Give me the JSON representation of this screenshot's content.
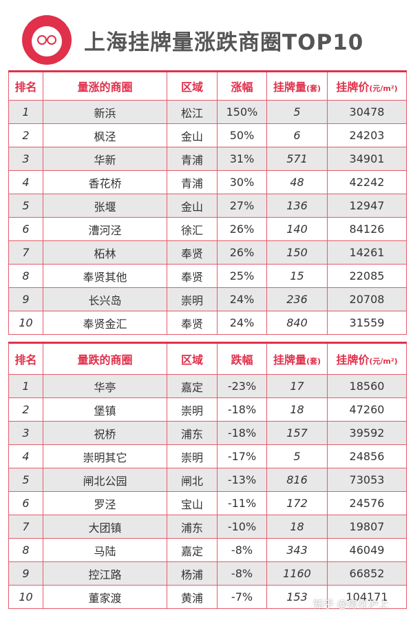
{
  "header": {
    "title": "上海挂牌量涨跌商圈TOP10"
  },
  "tables": [
    {
      "headers": [
        "排名",
        "量涨的商圈",
        "区域",
        "涨幅",
        {
          "text": "挂牌量",
          "unit": "(套)"
        },
        {
          "text": "挂牌价",
          "unit": "(元/m²)"
        }
      ],
      "rows": [
        [
          1,
          "新浜",
          "松江",
          "150%",
          5,
          30478
        ],
        [
          2,
          "枫泾",
          "金山",
          "50%",
          6,
          24203
        ],
        [
          3,
          "华新",
          "青浦",
          "31%",
          571,
          34901
        ],
        [
          4,
          "香花桥",
          "青浦",
          "30%",
          48,
          42242
        ],
        [
          5,
          "张堰",
          "金山",
          "27%",
          136,
          12947
        ],
        [
          6,
          "漕河泾",
          "徐汇",
          "26%",
          140,
          84126
        ],
        [
          7,
          "柘林",
          "奉贤",
          "26%",
          150,
          14261
        ],
        [
          8,
          "奉贤其他",
          "奉贤",
          "25%",
          15,
          22085
        ],
        [
          9,
          "长兴岛",
          "崇明",
          "24%",
          236,
          20708
        ],
        [
          10,
          "奉贤金汇",
          "奉贤",
          "24%",
          840,
          31559
        ]
      ]
    },
    {
      "headers": [
        "排名",
        "量跌的商圈",
        "区域",
        "跌幅",
        {
          "text": "挂牌量",
          "unit": "(套)"
        },
        {
          "text": "挂牌价",
          "unit": "(元/m²)"
        }
      ],
      "rows": [
        [
          1,
          "华亭",
          "嘉定",
          "-23%",
          17,
          18560
        ],
        [
          2,
          "堡镇",
          "崇明",
          "-18%",
          18,
          47260
        ],
        [
          3,
          "祝桥",
          "浦东",
          "-18%",
          157,
          39592
        ],
        [
          4,
          "崇明其它",
          "崇明",
          "-17%",
          5,
          24856
        ],
        [
          5,
          "闸北公园",
          "闸北",
          "-13%",
          816,
          73053
        ],
        [
          6,
          "罗泾",
          "宝山",
          "-11%",
          172,
          24576
        ],
        [
          7,
          "大团镇",
          "浦东",
          "-10%",
          18,
          19807
        ],
        [
          8,
          "马陆",
          "嘉定",
          "-8%",
          343,
          46049
        ],
        [
          9,
          "控江路",
          "杨浦",
          "-8%",
          1160,
          66852
        ],
        [
          10,
          "董家渡",
          "黄浦",
          "-7%",
          153,
          104171
        ]
      ]
    }
  ],
  "watermark": "知乎 @房在沪上"
}
